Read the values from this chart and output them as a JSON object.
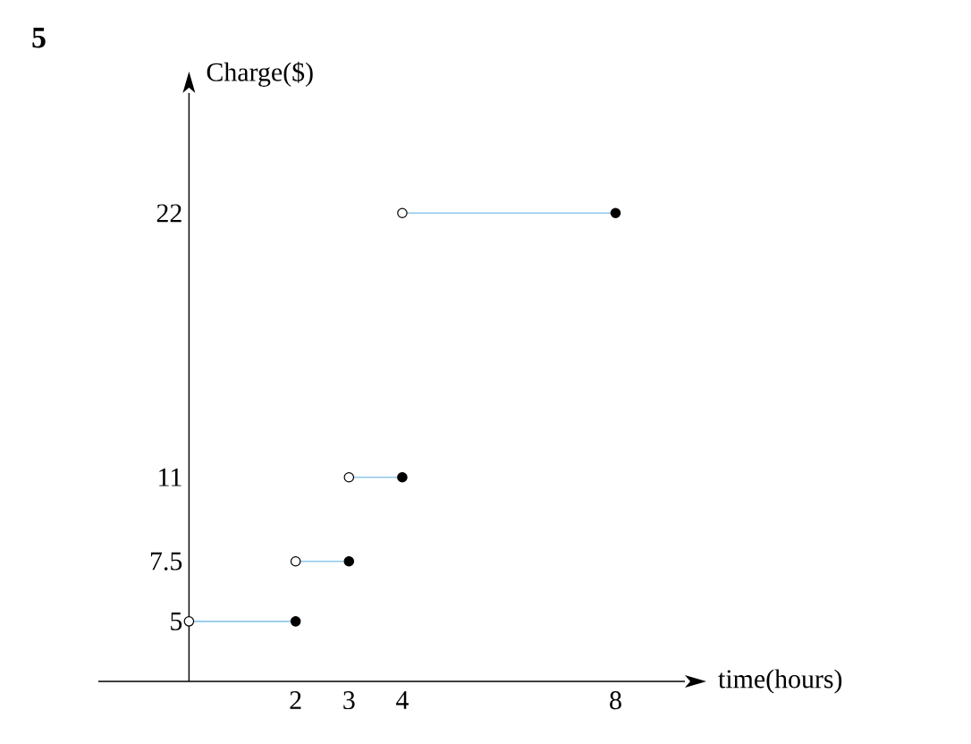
{
  "chart_data": {
    "type": "line",
    "title": "5",
    "xlabel": "time(hours)",
    "ylabel": "Charge($)",
    "xlim": [
      -1.7,
      9.3
    ],
    "ylim": [
      2.5,
      27
    ],
    "xticks": [
      2,
      3,
      4,
      8
    ],
    "yticks": [
      5,
      7.5,
      11,
      22
    ],
    "series": [
      {
        "type": "line",
        "color": "#8fc8e8",
        "marker": "none",
        "x": [
          0,
          2
        ],
        "values": [
          5,
          5
        ]
      },
      {
        "type": "line",
        "color": "#8fc8e8",
        "marker": "none",
        "x": [
          2,
          3
        ],
        "values": [
          7.5,
          7.5
        ]
      },
      {
        "type": "line",
        "color": "#8fc8e8",
        "marker": "none",
        "x": [
          3,
          4
        ],
        "values": [
          11,
          11
        ]
      },
      {
        "type": "line",
        "color": "#8fc8e8",
        "marker": "none",
        "x": [
          4,
          8
        ],
        "values": [
          22,
          22
        ]
      },
      {
        "type": "scatter",
        "color": "#000000",
        "marker": "circle",
        "x": [
          2,
          3,
          4,
          8
        ],
        "values": [
          5,
          7.5,
          11,
          22
        ]
      },
      {
        "type": "scatter",
        "color": "#ffffff",
        "marker": "circle",
        "x": [
          0,
          2,
          3,
          4
        ],
        "values": [
          5,
          7.5,
          11,
          22
        ]
      }
    ]
  }
}
